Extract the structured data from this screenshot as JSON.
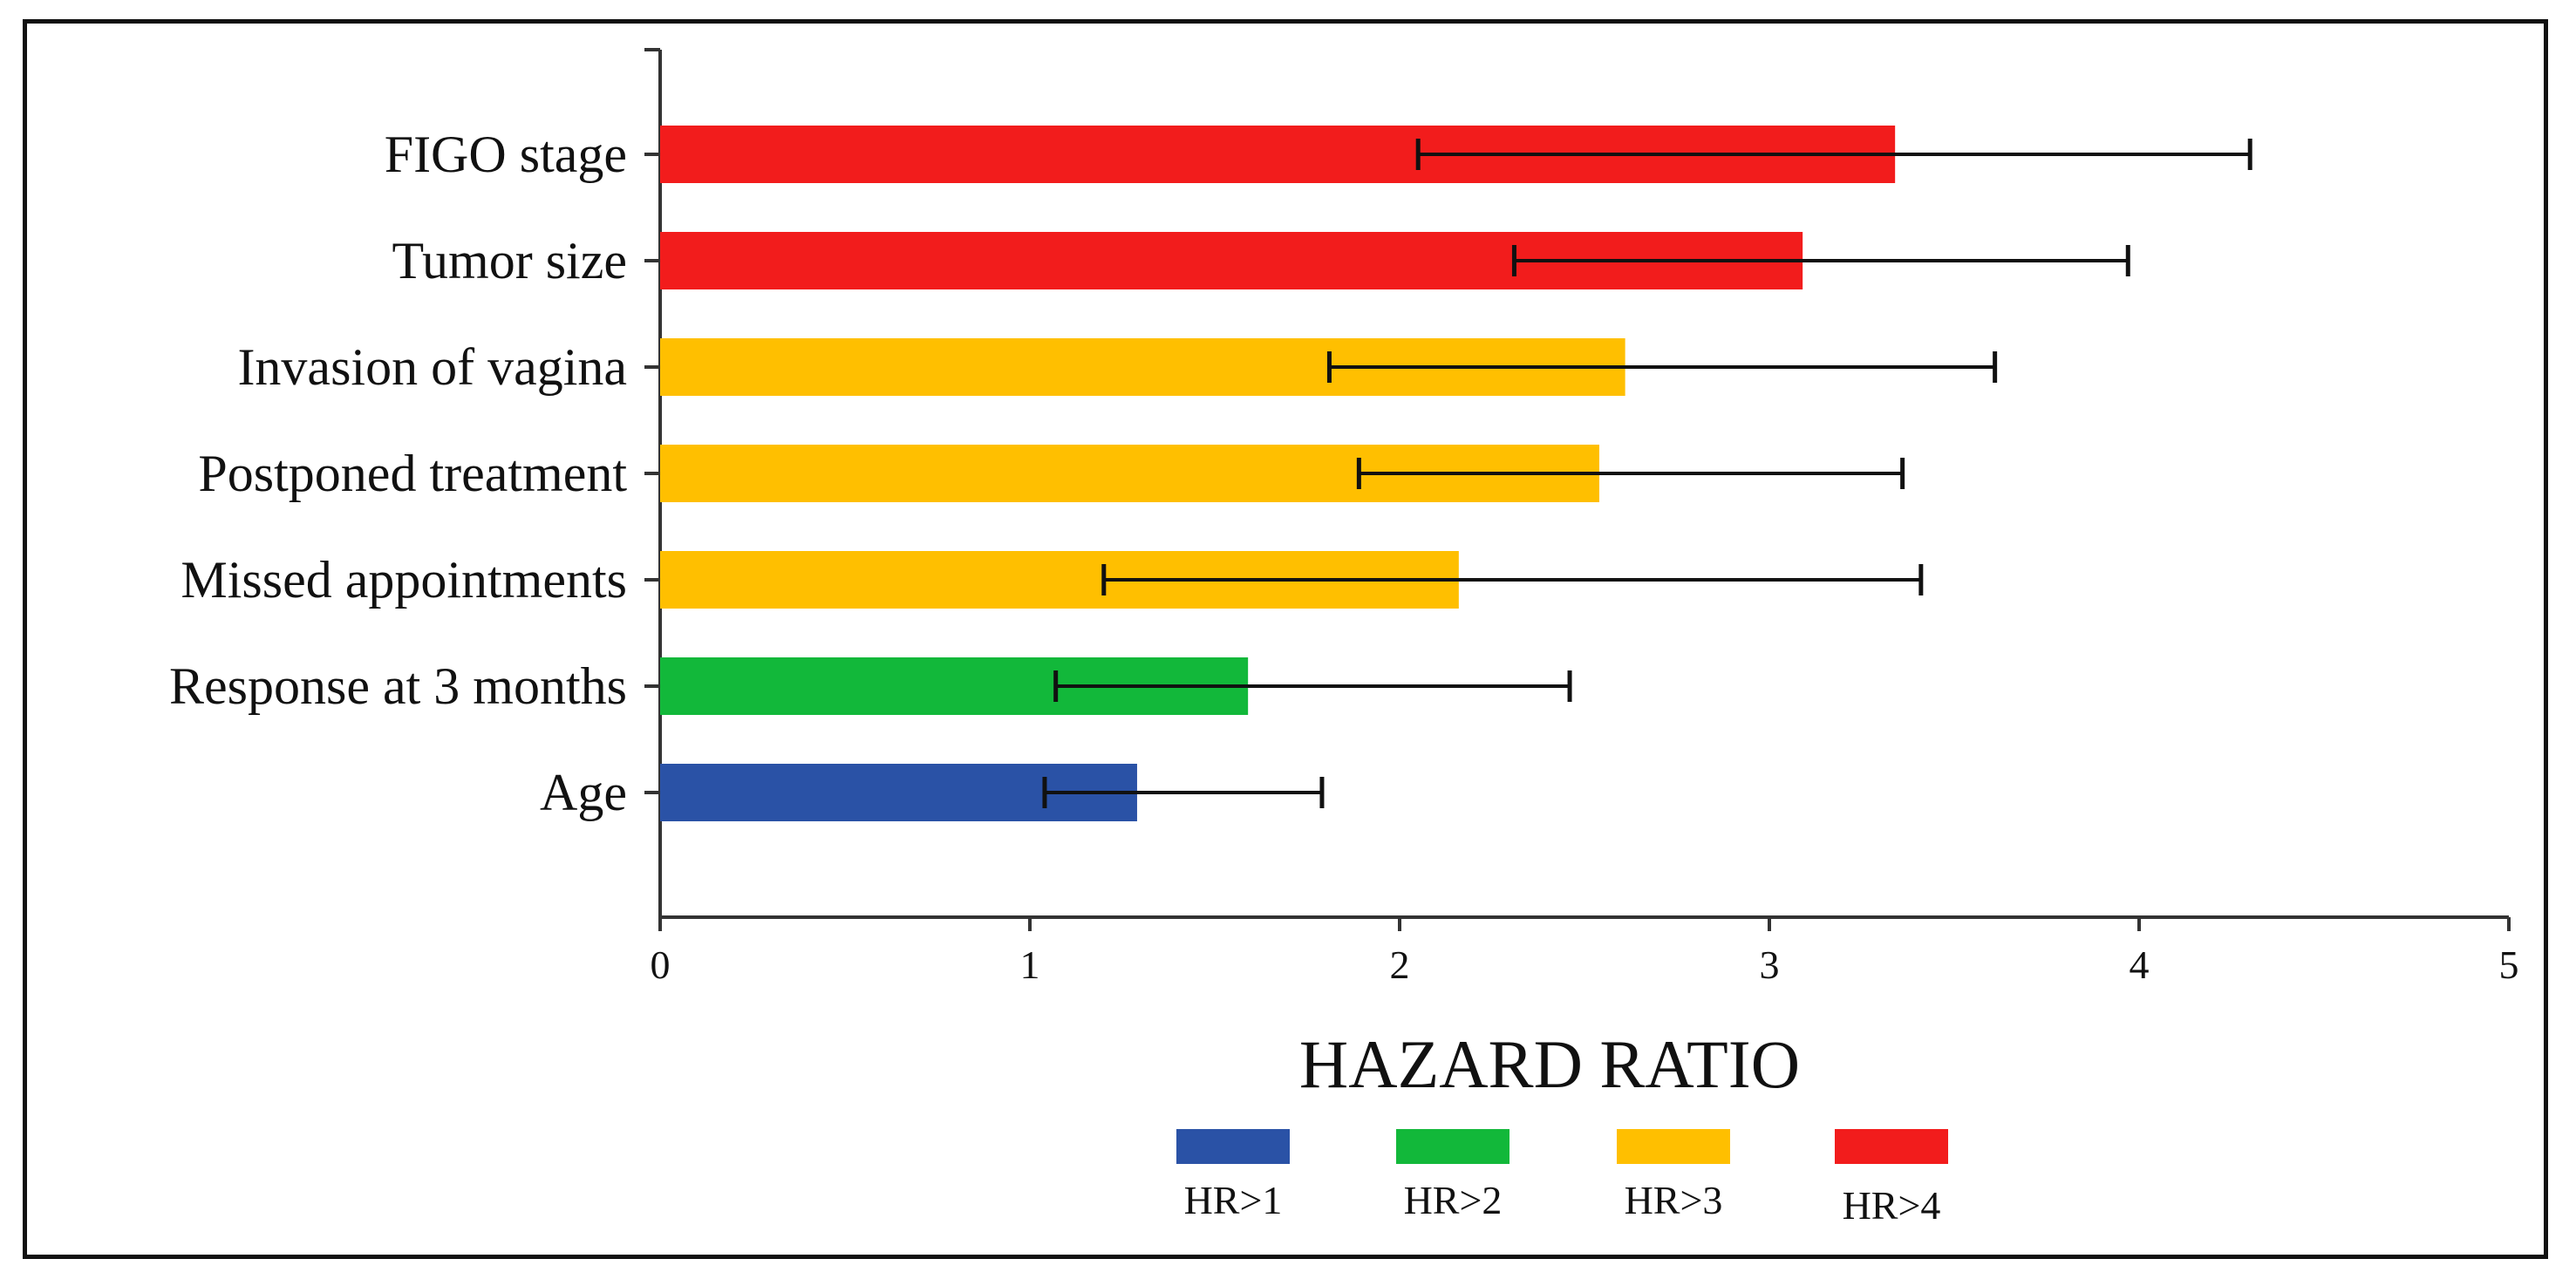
{
  "chart_data": {
    "type": "bar",
    "orientation": "horizontal",
    "xlabel": "HAZARD RATIO",
    "ylabel": "",
    "xlim": [
      0,
      5
    ],
    "xticks": [
      "0",
      "1",
      "2",
      "3",
      "4",
      "5"
    ],
    "grid": false,
    "categories": [
      "FIGO stage",
      "Tumor size",
      "Invasion of vagina",
      "Postponed treatment",
      "Missed appointments",
      "Response at 3 months",
      "Age"
    ],
    "values": [
      3.34,
      3.09,
      2.61,
      2.54,
      2.16,
      1.59,
      1.29
    ],
    "error_low": [
      2.05,
      2.31,
      1.81,
      1.89,
      1.2,
      1.07,
      1.04
    ],
    "error_high": [
      4.3,
      3.97,
      3.61,
      3.36,
      3.41,
      2.46,
      1.79
    ],
    "bar_group": [
      "HR>4",
      "HR>4",
      "HR>3",
      "HR>3",
      "HR>3",
      "HR>2",
      "HR>1"
    ],
    "legend_position": "bottom",
    "legend": [
      {
        "label": "HR>1",
        "color": "#2a52a6"
      },
      {
        "label": "HR>2",
        "color": "#12b83a"
      },
      {
        "label": "HR>3",
        "color": "#ffbf00"
      },
      {
        "label": "HR>4",
        "color": "#f21c1c"
      }
    ]
  }
}
